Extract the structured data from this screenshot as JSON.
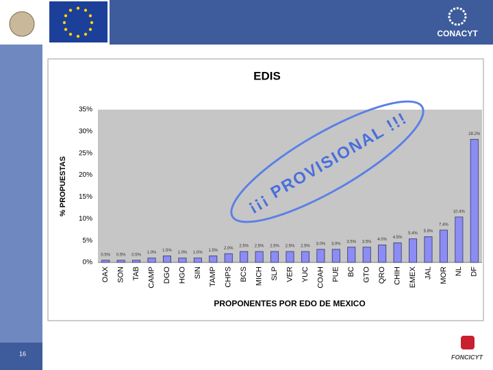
{
  "slide": {
    "page_number": "16",
    "logos": [
      "CONACYT",
      "FONCICYT"
    ]
  },
  "chart_data": {
    "type": "bar",
    "title": "EDIS",
    "y_label": "% PROPUESTAS",
    "x_label": "PROPONENTES POR EDO DE MEXICO",
    "annotation": "¡¡¡ PROVISIONAL !!!",
    "categories": [
      "OAX",
      "SON",
      "TAB",
      "CAMP",
      "DGO",
      "HGO",
      "SIN",
      "TAMP",
      "CHPS",
      "BCS",
      "MICH",
      "SLP",
      "VER",
      "YUC",
      "COAH",
      "PUE",
      "BC",
      "GTO",
      "QRO",
      "CHIH",
      "EMEX",
      "JAL",
      "MOR",
      "NL",
      "DF"
    ],
    "values": [
      0.5,
      0.5,
      0.5,
      1.0,
      1.5,
      1.0,
      1.0,
      1.5,
      2.0,
      2.5,
      2.5,
      2.5,
      2.5,
      2.5,
      3.0,
      3.0,
      3.5,
      3.5,
      4.0,
      4.5,
      5.4,
      5.9,
      7.4,
      10.4,
      28.2
    ],
    "value_labels": [
      "0.5%",
      "0.5%",
      "0.5%",
      "1.0%",
      "1.5%",
      "1.0%",
      "1.0%",
      "1.5%",
      "2.0%",
      "2.5%",
      "2.5%",
      "2.5%",
      "2.5%",
      "2.5%",
      "3.0%",
      "3.0%",
      "3.5%",
      "3.5%",
      "4.0%",
      "4.5%",
      "5.4%",
      "5.9%",
      "7.4%",
      "10.4%",
      "28.2%"
    ],
    "color": "#8c8cf5",
    "ylim": [
      0,
      35
    ],
    "yticks": [
      {
        "value": 0,
        "label": "0%"
      },
      {
        "value": 5,
        "label": "5%"
      },
      {
        "value": 10,
        "label": "10%"
      },
      {
        "value": 15,
        "label": "15%"
      },
      {
        "value": 20,
        "label": "20%"
      },
      {
        "value": 25,
        "label": "25%"
      },
      {
        "value": 30,
        "label": "30%"
      },
      {
        "value": 35,
        "label": "35%"
      }
    ],
    "grid": false
  }
}
